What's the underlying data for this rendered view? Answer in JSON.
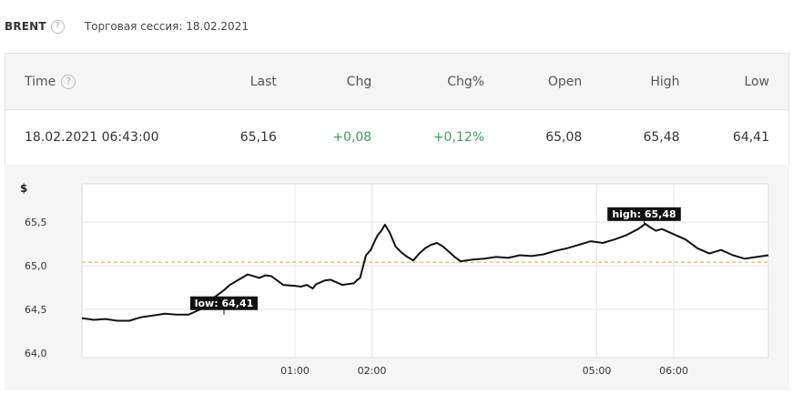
{
  "header": {
    "ticker": "BRENT",
    "session": "Торговая сессия: 18.02.2021"
  },
  "quote": {
    "columns": [
      "Time",
      "Last",
      "Chg",
      "Chg%",
      "Open",
      "High",
      "Low"
    ],
    "values": {
      "time": "18.02.2021 06:43:00",
      "last": "65,16",
      "chg": "+0,08",
      "chg_pct": "+0,12%",
      "open": "65,08",
      "high": "65,48",
      "low": "64,41"
    },
    "positive_color": "#3f9d5e"
  },
  "chart_data": {
    "type": "line",
    "ylabel": "$",
    "ylim": [
      64.0,
      65.5
    ],
    "y_ticks": [
      "64,0",
      "64,5",
      "65,0",
      "65,5"
    ],
    "y_tick_values": [
      64.0,
      64.5,
      65.0,
      65.5
    ],
    "x_ticks": [
      "01:00",
      "02:00",
      "05:00",
      "06:00"
    ],
    "x_tick_values": [
      60,
      125,
      315,
      380
    ],
    "xlim": [
      -120,
      460
    ],
    "reference_line": {
      "value": 65.04,
      "color": "#e8a23a"
    },
    "annotations": [
      {
        "label": "low: 64,41",
        "x": 0,
        "y": 64.44
      },
      {
        "label": "high: 65,48",
        "x": 355,
        "y": 65.46
      }
    ],
    "series": [
      {
        "color": "#111111",
        "x": [
          -120,
          -110,
          -100,
          -90,
          -80,
          -70,
          -60,
          -50,
          -40,
          -30,
          -20,
          -10,
          0,
          5,
          10,
          20,
          30,
          35,
          40,
          50,
          60,
          65,
          70,
          75,
          78,
          80,
          85,
          90,
          100,
          110,
          112,
          115,
          120,
          124,
          128,
          130,
          133,
          136,
          140,
          145,
          150,
          155,
          160,
          165,
          170,
          175,
          180,
          185,
          190,
          195,
          200,
          210,
          220,
          230,
          240,
          250,
          260,
          270,
          280,
          290,
          300,
          310,
          320,
          330,
          340,
          350,
          356,
          360,
          365,
          370,
          380,
          390,
          400,
          410,
          420,
          430,
          440,
          450,
          460
        ],
        "y": [
          64.4,
          64.38,
          64.39,
          64.37,
          64.37,
          64.41,
          64.43,
          64.45,
          64.44,
          64.44,
          64.5,
          64.62,
          64.72,
          64.78,
          64.82,
          64.9,
          64.86,
          64.89,
          64.88,
          64.78,
          64.77,
          64.76,
          64.78,
          64.74,
          64.79,
          64.8,
          64.83,
          64.84,
          64.78,
          64.8,
          64.83,
          64.86,
          65.12,
          65.18,
          65.3,
          65.35,
          65.4,
          65.47,
          65.38,
          65.22,
          65.15,
          65.1,
          65.06,
          65.14,
          65.2,
          65.24,
          65.26,
          65.22,
          65.16,
          65.1,
          65.05,
          65.07,
          65.08,
          65.1,
          65.09,
          65.12,
          65.11,
          65.13,
          65.17,
          65.2,
          65.24,
          65.28,
          65.26,
          65.3,
          65.35,
          65.42,
          65.48,
          65.44,
          65.4,
          65.42,
          65.36,
          65.3,
          65.2,
          65.14,
          65.18,
          65.12,
          65.08,
          65.1,
          65.12
        ]
      }
    ]
  }
}
